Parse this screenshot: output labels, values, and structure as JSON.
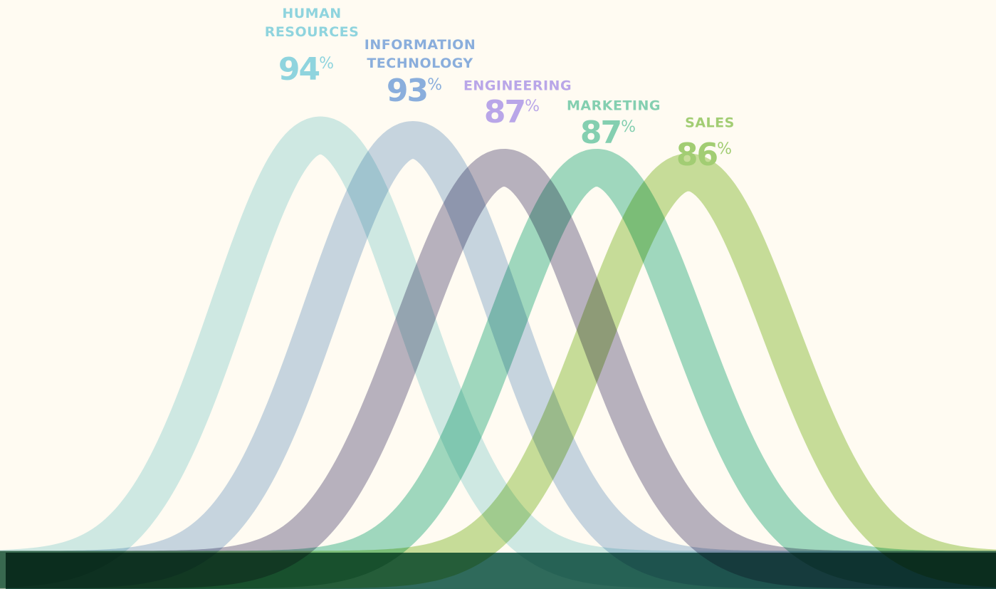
{
  "chart_data": {
    "type": "bell",
    "unit": "%",
    "series": [
      {
        "name": "HUMAN RESOURCES",
        "color": "#8fd4de",
        "values": [
          94
        ]
      },
      {
        "name": "INFORMATION TECHNOLOGY",
        "color": "#8aaedc",
        "values": [
          93
        ]
      },
      {
        "name": "ENGINEERING",
        "color": "#b9a6e8",
        "values": [
          87
        ]
      },
      {
        "name": "MARKETING",
        "color": "#84cfb0",
        "values": [
          87
        ]
      },
      {
        "name": "SALES",
        "color": "#a2cd73",
        "values": [
          86
        ]
      }
    ]
  }
}
